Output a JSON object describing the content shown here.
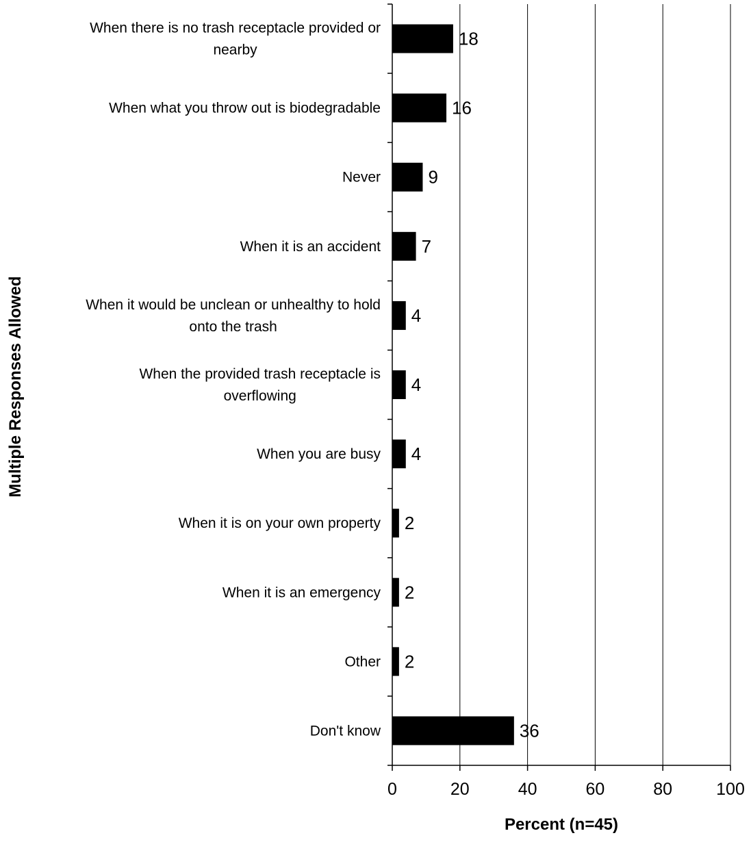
{
  "chart_data": {
    "type": "bar",
    "orientation": "horizontal",
    "categories": [
      [
        "When there is no trash receptacle provided or",
        "nearby"
      ],
      [
        "When what you throw out is biodegradable"
      ],
      [
        "Never"
      ],
      [
        "When it is an accident"
      ],
      [
        "When it would be unclean or unhealthy to hold",
        "onto the trash"
      ],
      [
        "When the provided trash receptacle is",
        "overflowing"
      ],
      [
        "When you are busy"
      ],
      [
        "When it is on your own property"
      ],
      [
        "When it is an emergency"
      ],
      [
        "Other"
      ],
      [
        "Don't know"
      ]
    ],
    "values": [
      18,
      16,
      9,
      7,
      4,
      4,
      4,
      2,
      2,
      2,
      36
    ],
    "value_labels": [
      "18",
      "16",
      "9",
      "7",
      "4",
      "4",
      "4",
      "2",
      "2",
      "2",
      "36"
    ],
    "xlim": [
      0,
      100
    ],
    "xticks": [
      0,
      20,
      40,
      60,
      80,
      100
    ],
    "xtick_labels": [
      "0",
      "20",
      "40",
      "60",
      "80",
      "100"
    ],
    "xlabel": "Percent (n=45)",
    "ylabel": "Multiple Responses Allowed",
    "title": "",
    "grid": "vertical",
    "bar_color": "#000000",
    "legend": "none"
  }
}
